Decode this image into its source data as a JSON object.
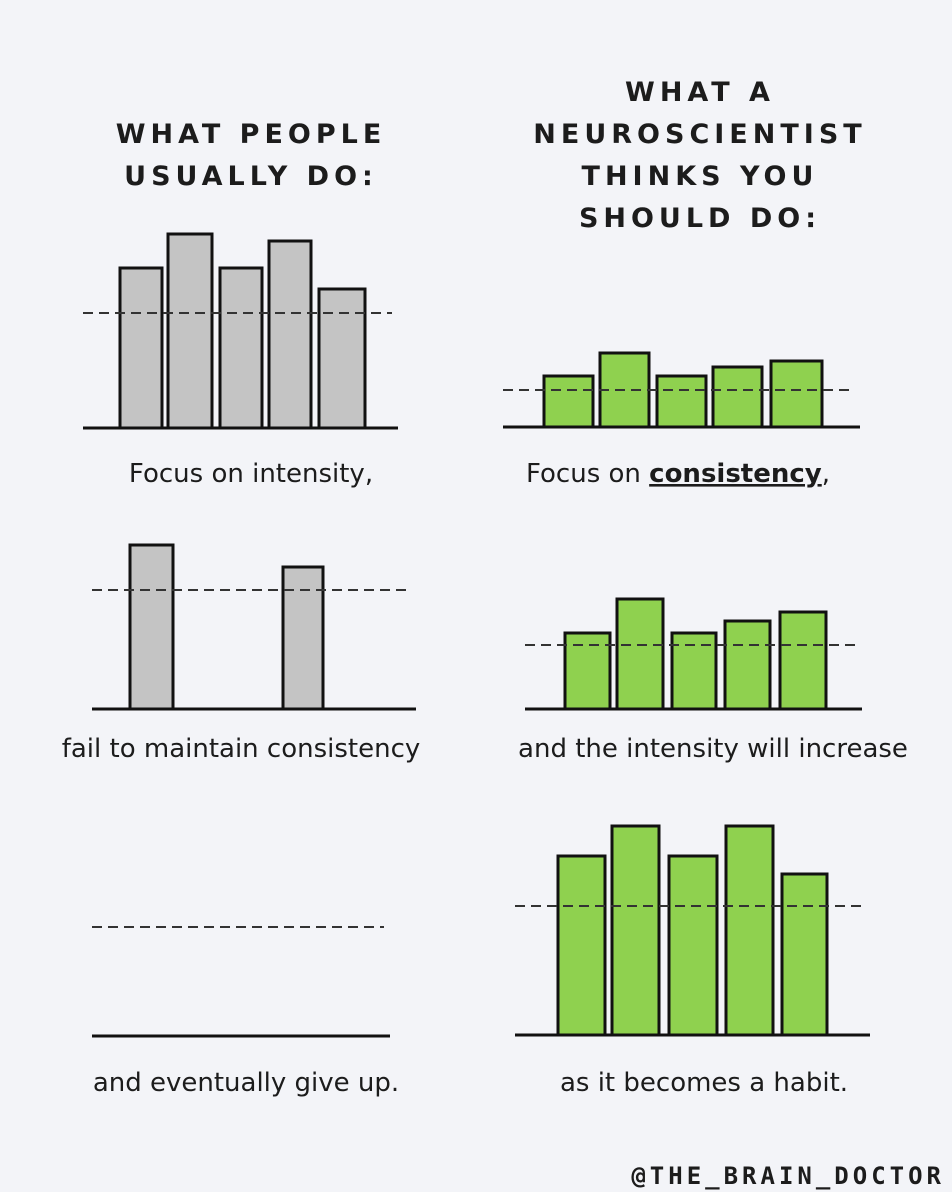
{
  "left": {
    "heading": [
      "WHAT PEOPLE",
      "USUALLY DO:"
    ],
    "captions": [
      "Focus on intensity,",
      "fail to maintain consistency",
      "and eventually give up."
    ]
  },
  "right": {
    "heading": [
      "WHAT A",
      "NEUROSCIENTIST",
      "THINKS YOU",
      "SHOULD DO:"
    ],
    "caption_1": [
      "Focus on ",
      "consistency",
      ","
    ],
    "captions": [
      "and the intensity will increase",
      "as it becomes a habit."
    ]
  },
  "handle": "@THE_BRAIN_DOCTOR"
}
